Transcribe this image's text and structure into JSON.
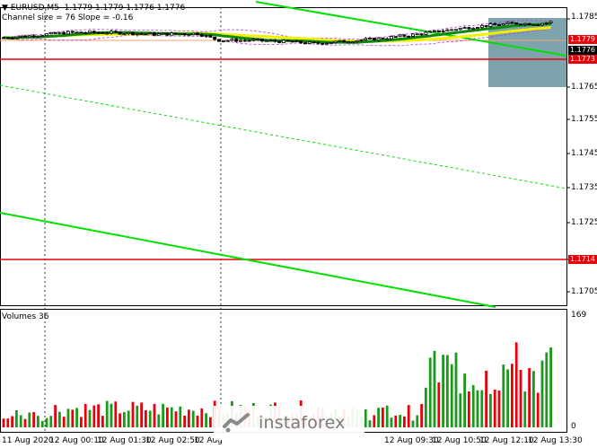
{
  "header": {
    "symbol": "EURUSD,M5",
    "ohlc": "1.1779 1.1779 1.1776 1.1776",
    "channel_info": "Channel size = 76 Slope = -0.16"
  },
  "price_axis": {
    "ticks": [
      "1.1785",
      "1.1776",
      "1.1765",
      "1.1755",
      "1.1745",
      "1.1735",
      "1.1725",
      "1.1714",
      "1.1705"
    ]
  },
  "price_labels": {
    "high_red": "1.1779",
    "current_black": "1.1776",
    "resistance_red": "1.1773",
    "support_red": "1.1714"
  },
  "volume_panel": {
    "title": "Volumes 36",
    "max_label": "169",
    "zero_label": "0"
  },
  "time_axis": {
    "labels": [
      "11 Aug 2020",
      "12 Aug 00:10",
      "12 Aug 01:30",
      "12 Aug 02:50",
      "12 Aug",
      "12 Aug 09:30",
      "12 Aug 10:50",
      "12 Aug 12:10",
      "12 Aug 13:30"
    ]
  },
  "watermark": {
    "text": "instaforex"
  },
  "colors": {
    "candle": "#000000",
    "channel": "#00e000",
    "ma_green": "#0a8a0a",
    "ma_yellow": "#f0f000",
    "bollinger": "#b040d0",
    "level": "#e8000b",
    "volume_up": "#1a9a1a",
    "volume_down": "#e8000b"
  }
}
